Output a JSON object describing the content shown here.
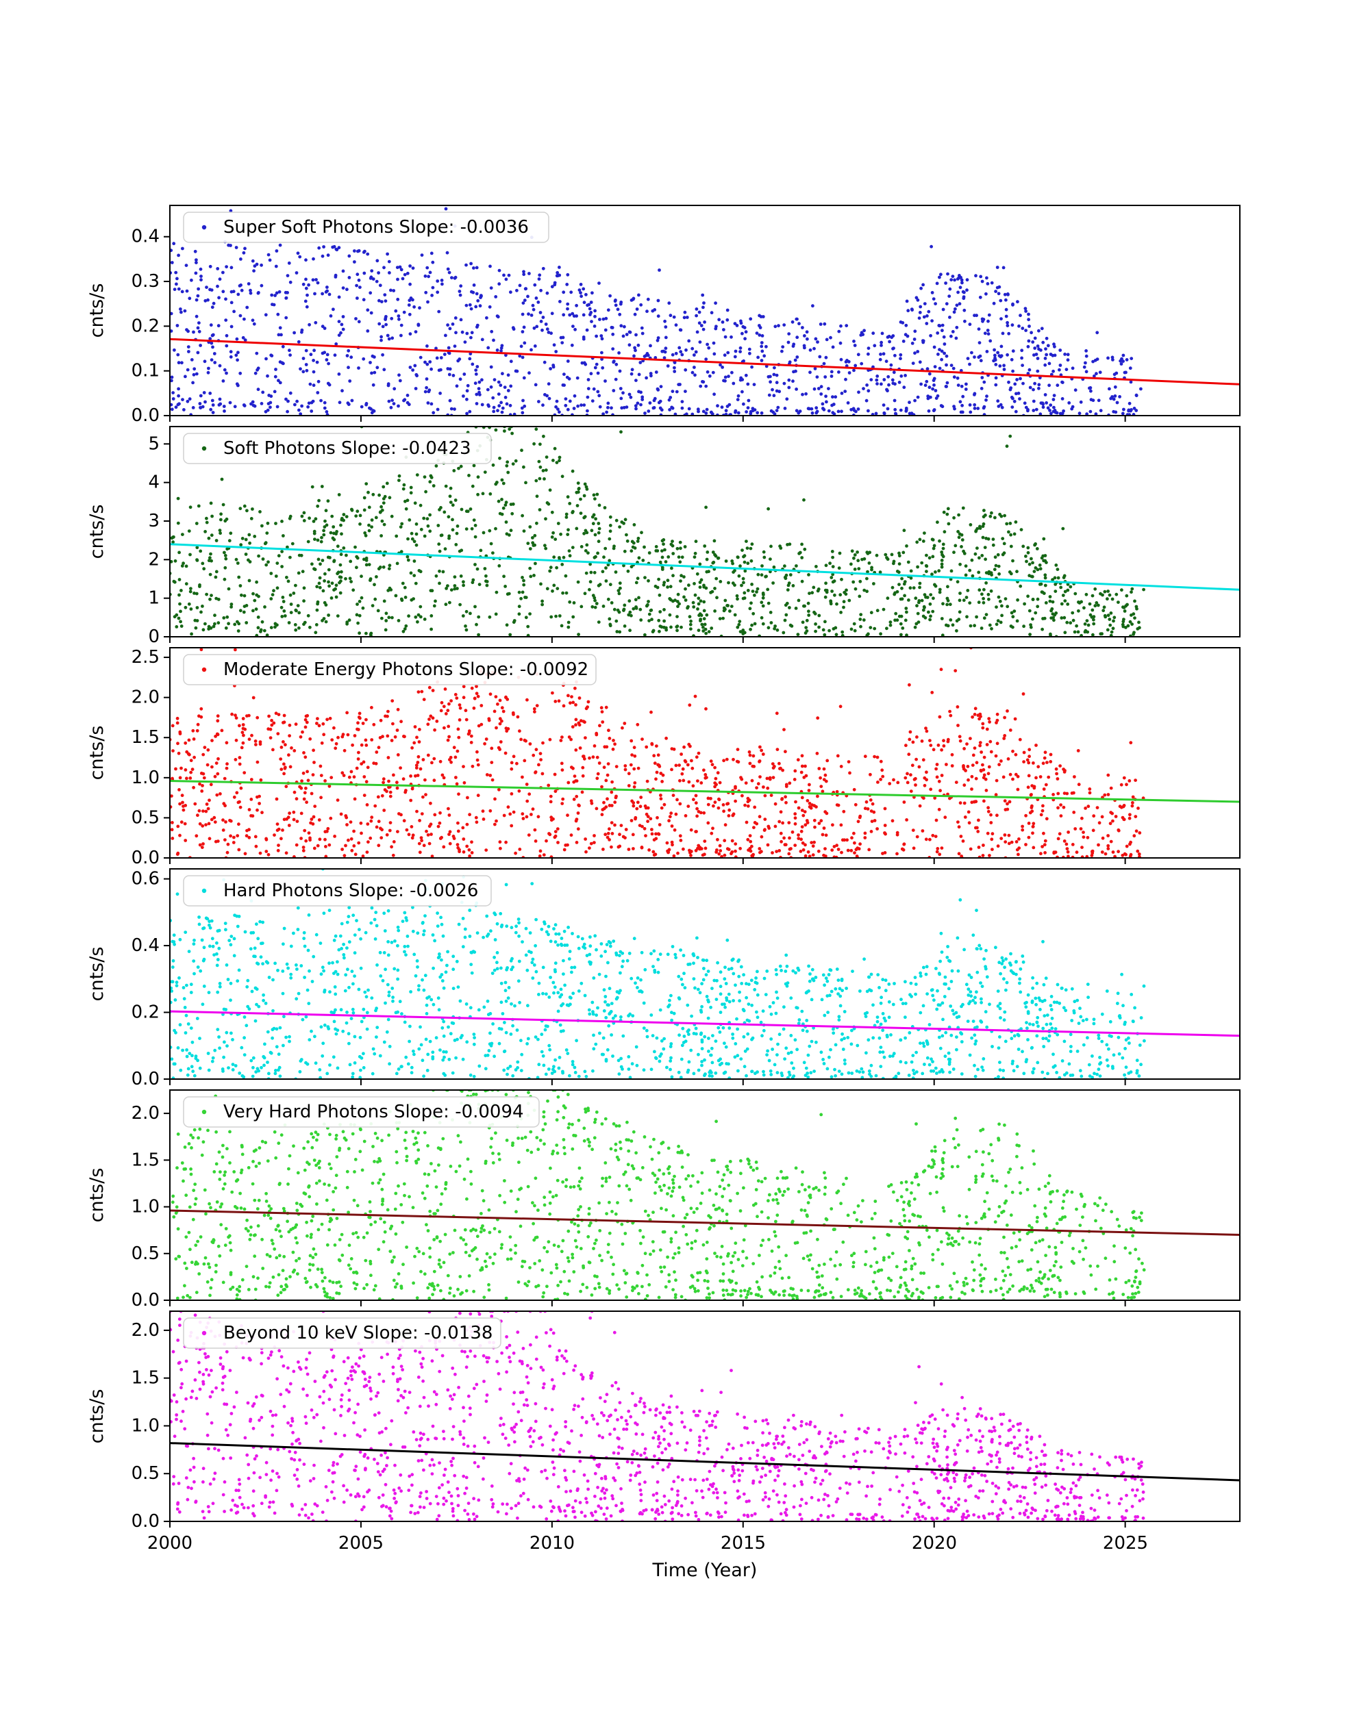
{
  "figure": {
    "background": "#ffffff",
    "spine_color": "#000000"
  },
  "chart_data": {
    "type": "scatter",
    "title": "",
    "xlabel": "Time (Year)",
    "ylabel": "cnts/s",
    "xlim": [
      2000,
      2028
    ],
    "xticks": [
      2000,
      2005,
      2010,
      2015,
      2020,
      2025
    ],
    "xtick_labels": [
      "2000",
      "2005",
      "2010",
      "2015",
      "2020",
      "2025"
    ],
    "x_data_range": [
      2000.0,
      2025.5
    ],
    "grid": false,
    "legend_position": "upper left",
    "x_density": [
      [
        2000,
        0.85
      ],
      [
        2004,
        0.9
      ],
      [
        2007,
        1.0
      ],
      [
        2012,
        0.95
      ],
      [
        2013.5,
        1.0
      ],
      [
        2016.5,
        0.75
      ],
      [
        2018.5,
        0.6
      ],
      [
        2019.6,
        0.8
      ],
      [
        2020.3,
        1.0
      ],
      [
        2022.5,
        0.95
      ],
      [
        2023.2,
        0.8
      ],
      [
        2024.3,
        0.5
      ],
      [
        2025.0,
        0.55
      ],
      [
        2025.5,
        0.6
      ]
    ],
    "panels": [
      {
        "id": "super-soft",
        "legend": "Super Soft Photons Slope: -0.0036",
        "series_name": "Super Soft Photons",
        "slope": -0.0036,
        "ylabel": "cnts/s",
        "ylim": [
          0,
          0.47
        ],
        "yticks": [
          0.0,
          0.1,
          0.2,
          0.3,
          0.4
        ],
        "ytick_labels": [
          "0.0",
          "0.1",
          "0.2",
          "0.3",
          "0.4"
        ],
        "point_color": "#2222cc",
        "trend_color": "#ee0000",
        "trend": {
          "x": [
            2000,
            2028
          ],
          "y": [
            0.171,
            0.07
          ]
        },
        "n_points": 1700,
        "seed": 101,
        "gen": {
          "lo": 0.1,
          "hi": 2.3,
          "low_frac": 0.09,
          "outlier_frac": 0.02,
          "mod": [
            [
              2000,
              1.0
            ],
            [
              2007,
              1.1
            ],
            [
              2010,
              1.05
            ],
            [
              2013,
              0.9
            ],
            [
              2016,
              0.85
            ],
            [
              2019,
              0.8
            ],
            [
              2019.8,
              1.4
            ],
            [
              2021,
              1.5
            ],
            [
              2022,
              1.3
            ],
            [
              2022.8,
              1.0
            ],
            [
              2023.5,
              0.75
            ],
            [
              2025.5,
              0.8
            ]
          ]
        }
      },
      {
        "id": "soft",
        "legend": "Soft Photons Slope: -0.0423",
        "series_name": "Soft Photons",
        "slope": -0.0423,
        "ylabel": "cnts/s",
        "ylim": [
          0,
          5.45
        ],
        "yticks": [
          0,
          1,
          2,
          3,
          4,
          5
        ],
        "ytick_labels": [
          "0",
          "1",
          "2",
          "3",
          "4",
          "5"
        ],
        "point_color": "#156615",
        "trend_color": "#00e0e0",
        "trend": {
          "x": [
            2000,
            2028
          ],
          "y": [
            2.4,
            1.22
          ]
        },
        "n_points": 1700,
        "seed": 102,
        "gen": {
          "lo": 0.15,
          "hi": 1.8,
          "low_frac": 0.06,
          "outlier_frac": 0.015,
          "mod": [
            [
              2000,
              0.85
            ],
            [
              2003,
              0.8
            ],
            [
              2006,
              1.1
            ],
            [
              2008,
              1.5
            ],
            [
              2009.5,
              1.55
            ],
            [
              2011,
              1.1
            ],
            [
              2013,
              0.75
            ],
            [
              2016,
              0.8
            ],
            [
              2019,
              0.75
            ],
            [
              2020.5,
              1.25
            ],
            [
              2022,
              1.2
            ],
            [
              2023,
              0.8
            ],
            [
              2024,
              0.5
            ],
            [
              2025.5,
              0.55
            ]
          ]
        }
      },
      {
        "id": "moderate-energy",
        "legend": "Moderate Energy Photons Slope: -0.0092",
        "series_name": "Moderate Energy Photons",
        "slope": -0.0092,
        "ylabel": "cnts/s",
        "ylim": [
          0,
          2.62
        ],
        "yticks": [
          0.0,
          0.5,
          1.0,
          1.5,
          2.0,
          2.5
        ],
        "ytick_labels": [
          "0.0",
          "0.5",
          "1.0",
          "1.5",
          "2.0",
          "2.5"
        ],
        "point_color": "#ee1111",
        "trend_color": "#2ecc2e",
        "trend": {
          "x": [
            2000,
            2028
          ],
          "y": [
            0.96,
            0.7
          ]
        },
        "n_points": 1700,
        "seed": 103,
        "gen": {
          "lo": 0.15,
          "hi": 2.1,
          "low_frac": 0.08,
          "outlier_frac": 0.02,
          "mod": [
            [
              2000,
              0.9
            ],
            [
              2005,
              0.95
            ],
            [
              2008,
              1.3
            ],
            [
              2010,
              1.25
            ],
            [
              2013,
              0.85
            ],
            [
              2016,
              0.8
            ],
            [
              2019,
              0.8
            ],
            [
              2020.5,
              1.2
            ],
            [
              2022,
              1.15
            ],
            [
              2023.5,
              0.7
            ],
            [
              2025.5,
              0.65
            ]
          ]
        }
      },
      {
        "id": "hard",
        "legend": "Hard Photons Slope: -0.0026",
        "series_name": "Hard Photons",
        "slope": -0.0026,
        "ylabel": "cnts/s",
        "ylim": [
          0,
          0.63
        ],
        "yticks": [
          0.0,
          0.2,
          0.4,
          0.6
        ],
        "ytick_labels": [
          "0.0",
          "0.2",
          "0.4",
          "0.6"
        ],
        "point_color": "#00dddd",
        "trend_color": "#ee00ee",
        "trend": {
          "x": [
            2000,
            2028
          ],
          "y": [
            0.203,
            0.13
          ]
        },
        "n_points": 1700,
        "seed": 104,
        "gen": {
          "lo": 0.1,
          "hi": 2.4,
          "low_frac": 0.08,
          "outlier_frac": 0.025,
          "mod": [
            [
              2000,
              1.0
            ],
            [
              2008,
              1.2
            ],
            [
              2013,
              0.95
            ],
            [
              2016,
              0.9
            ],
            [
              2019,
              0.85
            ],
            [
              2020.5,
              1.2
            ],
            [
              2022,
              1.1
            ],
            [
              2023.5,
              0.8
            ],
            [
              2025.5,
              0.8
            ]
          ]
        }
      },
      {
        "id": "very-hard",
        "legend": "Very Hard Photons Slope: -0.0094",
        "series_name": "Very Hard Photons",
        "slope": -0.0094,
        "ylabel": "cnts/s",
        "ylim": [
          0,
          2.25
        ],
        "yticks": [
          0.0,
          0.5,
          1.0,
          1.5,
          2.0
        ],
        "ytick_labels": [
          "0.0",
          "0.5",
          "1.0",
          "1.5",
          "2.0"
        ],
        "point_color": "#35d435",
        "trend_color": "#7a1010",
        "trend": {
          "x": [
            2000,
            2028
          ],
          "y": [
            0.96,
            0.7
          ]
        },
        "n_points": 1700,
        "seed": 105,
        "gen": {
          "lo": 0.12,
          "hi": 2.1,
          "low_frac": 0.1,
          "outlier_frac": 0.012,
          "mod": [
            [
              2000,
              0.9
            ],
            [
              2005,
              1.0
            ],
            [
              2008,
              1.35
            ],
            [
              2010,
              1.3
            ],
            [
              2013,
              0.95
            ],
            [
              2016,
              0.85
            ],
            [
              2019,
              0.75
            ],
            [
              2020.5,
              1.15
            ],
            [
              2022,
              1.2
            ],
            [
              2023.5,
              0.75
            ],
            [
              2025.5,
              0.7
            ]
          ]
        }
      },
      {
        "id": "beyond-10kev",
        "legend": "Beyond 10 keV Slope: -0.0138",
        "series_name": "Beyond 10 keV",
        "slope": -0.0138,
        "ylabel": "cnts/s",
        "ylim": [
          0,
          2.2
        ],
        "yticks": [
          0.0,
          0.5,
          1.0,
          1.5,
          2.0
        ],
        "ytick_labels": [
          "0.0",
          "0.5",
          "1.0",
          "1.5",
          "2.0"
        ],
        "point_color": "#e818e8",
        "trend_color": "#000000",
        "trend": {
          "x": [
            2000,
            2028
          ],
          "y": [
            0.82,
            0.43
          ]
        },
        "n_points": 1700,
        "seed": 106,
        "gen": {
          "lo": 0.12,
          "hi": 2.0,
          "low_frac": 0.1,
          "outlier_frac": 0.02,
          "mod": [
            [
              2000,
              1.4
            ],
            [
              2003,
              1.3
            ],
            [
              2006,
              1.3
            ],
            [
              2008,
              1.6
            ],
            [
              2009.8,
              1.7
            ],
            [
              2011,
              1.2
            ],
            [
              2013,
              0.95
            ],
            [
              2016,
              0.9
            ],
            [
              2019,
              0.85
            ],
            [
              2020.5,
              1.15
            ],
            [
              2022,
              1.1
            ],
            [
              2023.5,
              0.75
            ],
            [
              2025.5,
              0.7
            ]
          ]
        }
      }
    ]
  }
}
